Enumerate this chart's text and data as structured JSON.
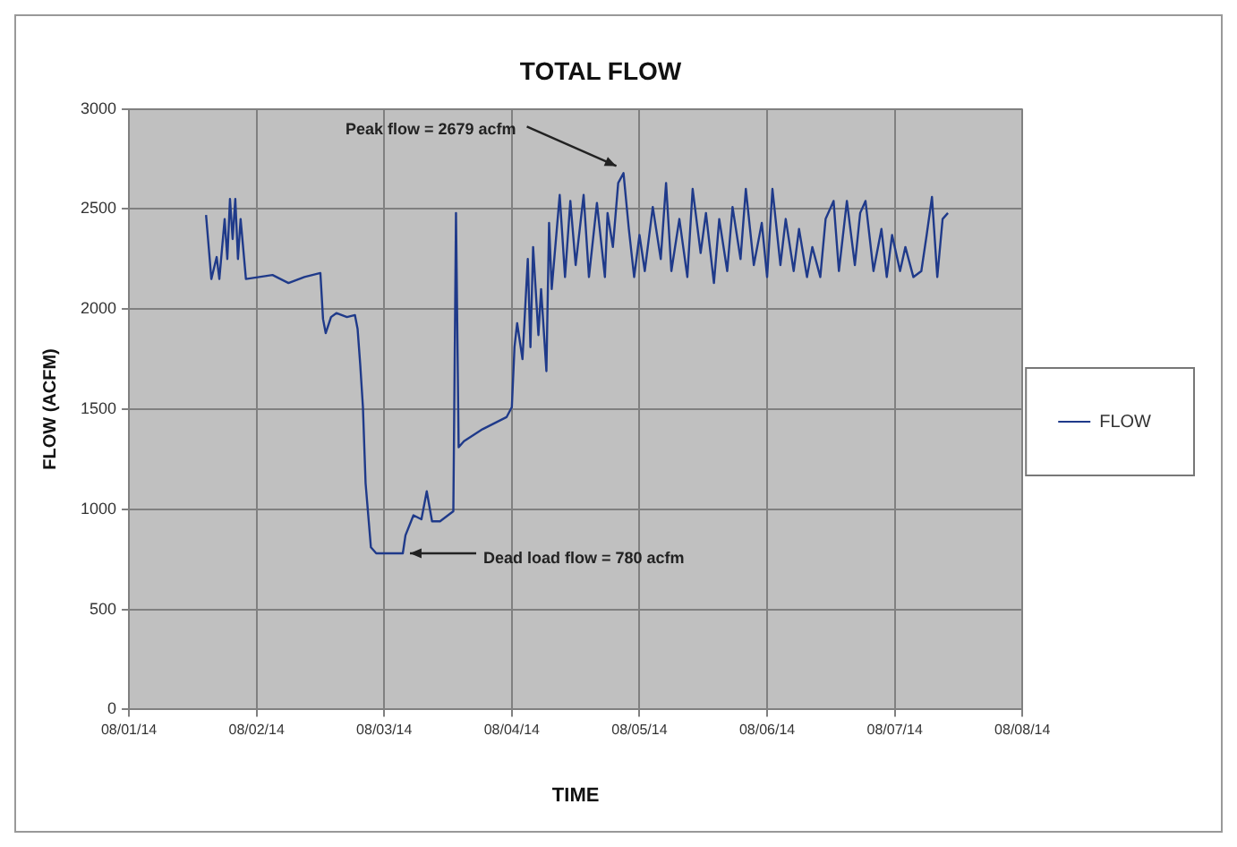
{
  "chart_data": {
    "type": "line",
    "title": "TOTAL FLOW",
    "xlabel": "TIME",
    "ylabel": "FLOW (ACFM)",
    "legend": "right",
    "grid": true,
    "marker": "none",
    "xlim": [
      "--08-01",
      "--08-08"
    ],
    "xticks": [
      {
        "value": "--08-01",
        "label": "08/01/14"
      },
      {
        "value": "--08-02",
        "label": "08/02/14"
      },
      {
        "value": "--08-03",
        "label": "08/03/14"
      },
      {
        "value": "--08-04",
        "label": "08/04/14"
      },
      {
        "value": "--08-05",
        "label": "08/05/14"
      },
      {
        "value": "--08-06",
        "label": "08/06/14"
      },
      {
        "value": "--08-07",
        "label": "08/07/14"
      },
      {
        "value": "--08-08",
        "label": "08/08/14"
      }
    ],
    "ylim": [
      0,
      3000
    ],
    "yticks": [
      0,
      500,
      1000,
      1500,
      2000,
      2500,
      3000
    ],
    "annotations": [
      {
        "text": "Peak flow = 2679 acfm",
        "x": "--08-04T21:00",
        "y": 2679
      },
      {
        "text": "Dead load flow = 780 acfm",
        "x": "--08-03T03:30",
        "y": 780
      }
    ],
    "x": [
      "--08-01T14:30",
      "--08-01T15:30",
      "--08-01T16:30",
      "--08-01T17:00",
      "--08-01T18:00",
      "--08-01T18:30",
      "--08-01T19:00",
      "--08-01T19:30",
      "--08-01T20:00",
      "--08-01T20:30",
      "--08-01T21:00",
      "--08-01T22:00",
      "--08-02T03:00",
      "--08-02T06:00",
      "--08-02T09:00",
      "--08-02T12:00",
      "--08-02T12:30",
      "--08-02T13:00",
      "--08-02T14:00",
      "--08-02T15:00",
      "--08-02T17:00",
      "--08-02T18:30",
      "--08-02T19:00",
      "--08-02T19:30",
      "--08-02T20:00",
      "--08-02T20:30",
      "--08-02T21:30",
      "--08-02T22:30",
      "--08-03T01:00",
      "--08-03T03:30",
      "--08-03T04:00",
      "--08-03T05:30",
      "--08-03T07:00",
      "--08-03T08:00",
      "--08-03T09:00",
      "--08-03T10:30",
      "--08-03T13:00",
      "--08-03T13:30",
      "--08-03T14:00",
      "--08-03T15:00",
      "--08-03T18:30",
      "--08-03T23:00",
      "--08-04T00:00",
      "--08-04T00:30",
      "--08-04T01:00",
      "--08-04T02:00",
      "--08-04T03:00",
      "--08-04T03:30",
      "--08-04T04:00",
      "--08-04T05:00",
      "--08-04T05:30",
      "--08-04T06:30",
      "--08-04T07:00",
      "--08-04T07:30",
      "--08-04T09:00",
      "--08-04T10:00",
      "--08-04T11:00",
      "--08-04T12:00",
      "--08-04T13:30",
      "--08-04T14:30",
      "--08-04T16:00",
      "--08-04T17:30",
      "--08-04T18:00",
      "--08-04T19:00",
      "--08-04T20:00",
      "--08-04T21:00",
      "--08-04T22:00",
      "--08-04T23:00",
      "--08-05T00:00",
      "--08-05T01:00",
      "--08-05T02:30",
      "--08-05T04:00",
      "--08-05T05:00",
      "--08-05T06:00",
      "--08-05T07:30",
      "--08-05T09:00",
      "--08-05T10:00",
      "--08-05T11:30",
      "--08-05T12:30",
      "--08-05T14:00",
      "--08-05T15:00",
      "--08-05T16:30",
      "--08-05T17:30",
      "--08-05T19:00",
      "--08-05T20:00",
      "--08-05T21:30",
      "--08-05T23:00",
      "--08-06T00:00",
      "--08-06T01:00",
      "--08-06T02:30",
      "--08-06T03:30",
      "--08-06T05:00",
      "--08-06T06:00",
      "--08-06T07:30",
      "--08-06T08:30",
      "--08-06T10:00",
      "--08-06T11:00",
      "--08-06T12:30",
      "--08-06T13:30",
      "--08-06T15:00",
      "--08-06T16:30",
      "--08-06T17:30",
      "--08-06T18:30",
      "--08-06T20:00",
      "--08-06T21:30",
      "--08-06T22:30",
      "--08-06T23:30",
      "--08-07T01:00",
      "--08-07T02:00",
      "--08-07T03:30",
      "--08-07T05:00",
      "--08-07T06:00",
      "--08-07T07:00",
      "--08-07T08:00",
      "--08-07T09:00",
      "--08-07T10:00"
    ],
    "series": [
      {
        "name": "FLOW",
        "color": "#1f3a8a",
        "values": [
          2470,
          2150,
          2260,
          2150,
          2450,
          2250,
          2550,
          2350,
          2550,
          2250,
          2450,
          2150,
          2170,
          2130,
          2160,
          2180,
          1950,
          1880,
          1960,
          1980,
          1960,
          1970,
          1900,
          1720,
          1510,
          1130,
          810,
          780,
          780,
          780,
          870,
          970,
          950,
          1090,
          940,
          940,
          990,
          2480,
          1310,
          1340,
          1400,
          1460,
          1510,
          1810,
          1930,
          1750,
          2250,
          1810,
          2310,
          1870,
          2100,
          1690,
          2430,
          2100,
          2570,
          2160,
          2540,
          2220,
          2570,
          2160,
          2530,
          2160,
          2480,
          2310,
          2630,
          2679,
          2400,
          2160,
          2370,
          2190,
          2510,
          2250,
          2630,
          2190,
          2450,
          2160,
          2600,
          2280,
          2480,
          2130,
          2450,
          2190,
          2510,
          2250,
          2600,
          2220,
          2430,
          2160,
          2600,
          2220,
          2450,
          2190,
          2400,
          2160,
          2310,
          2160,
          2450,
          2540,
          2190,
          2540,
          2220,
          2480,
          2540,
          2190,
          2400,
          2160,
          2370,
          2190,
          2310,
          2160,
          2190,
          2370,
          2560,
          2160,
          2450,
          2480
        ]
      }
    ]
  }
}
